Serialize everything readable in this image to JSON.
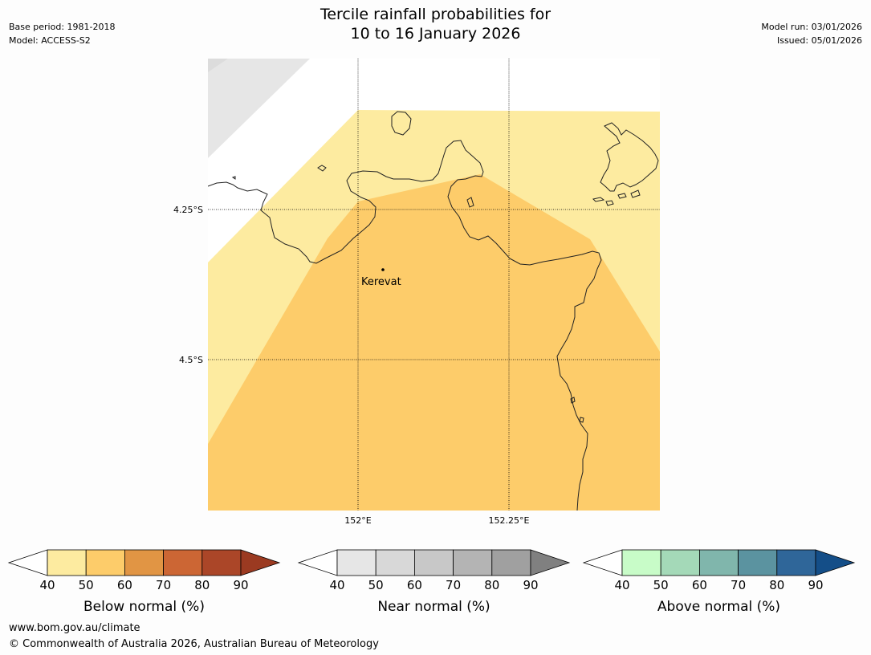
{
  "header": {
    "title_line1": "Tercile rainfall probabilities for",
    "title_line2": "10 to 16 January 2026",
    "base_period": "Base period: 1981-2018",
    "model": "Model: ACCESS-S2",
    "model_run": "Model run: 03/01/2026",
    "issued": "Issued: 05/01/2026"
  },
  "map": {
    "latitude_labels": [
      "4.25°S",
      "4.5°S"
    ],
    "longitude_labels": [
      "152°E",
      "152.25°E"
    ],
    "places": [
      {
        "name": "Kerevat"
      }
    ],
    "colors": {
      "prob_40_50": "#fdeba0",
      "prob_50_60": "#fdcc6a",
      "near_normal": "#e6e6e6",
      "coastline": "#222222"
    }
  },
  "legends": [
    {
      "title": "Below normal (%)",
      "ticks": [
        "40",
        "50",
        "60",
        "70",
        "80",
        "90"
      ],
      "colors": [
        "#fdeba0",
        "#fdcc6a",
        "#e19544",
        "#cc6634",
        "#ab4628",
        "#9b3a21"
      ]
    },
    {
      "title": "Near normal (%)",
      "ticks": [
        "40",
        "50",
        "60",
        "70",
        "80",
        "90"
      ],
      "colors": [
        "#e6e6e6",
        "#d8d8d8",
        "#c8c8c8",
        "#b4b4b4",
        "#a0a0a0",
        "#808080"
      ]
    },
    {
      "title": "Above normal (%)",
      "ticks": [
        "40",
        "50",
        "60",
        "70",
        "80",
        "90"
      ],
      "colors": [
        "#c8fcc8",
        "#a4d9b8",
        "#80b6ac",
        "#5b93a0",
        "#2f6699",
        "#144e88"
      ]
    }
  ],
  "footer": {
    "url": "www.bom.gov.au/climate",
    "copyright": "© Commonwealth of Australia 2026, Australian Bureau of Meteorology"
  }
}
